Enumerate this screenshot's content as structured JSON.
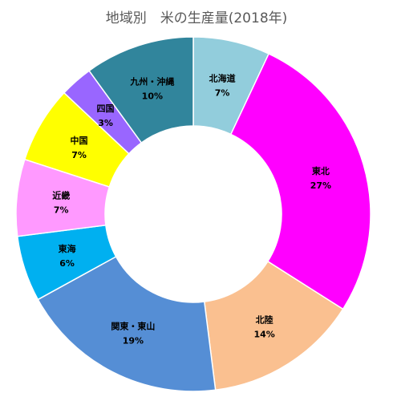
{
  "chart_data": {
    "type": "pie",
    "title": "地域別　米の生産量(2018年)",
    "categories": [
      "北海道",
      "東北",
      "北陸",
      "関東・東山",
      "東海",
      "近畿",
      "中国",
      "四国",
      "九州・沖縄"
    ],
    "values": [
      7,
      27,
      14,
      19,
      6,
      7,
      7,
      3,
      10
    ],
    "value_labels": [
      "7%",
      "27%",
      "14%",
      "19%",
      "6%",
      "7%",
      "7%",
      "3%",
      "10%"
    ],
    "colors": [
      "#92CDDC",
      "#FF00FF",
      "#FAC090",
      "#558ED5",
      "#00B0F0",
      "#FF99FF",
      "#FFFF00",
      "#9966FF",
      "#31859C"
    ],
    "donut": true,
    "legend": "none"
  }
}
